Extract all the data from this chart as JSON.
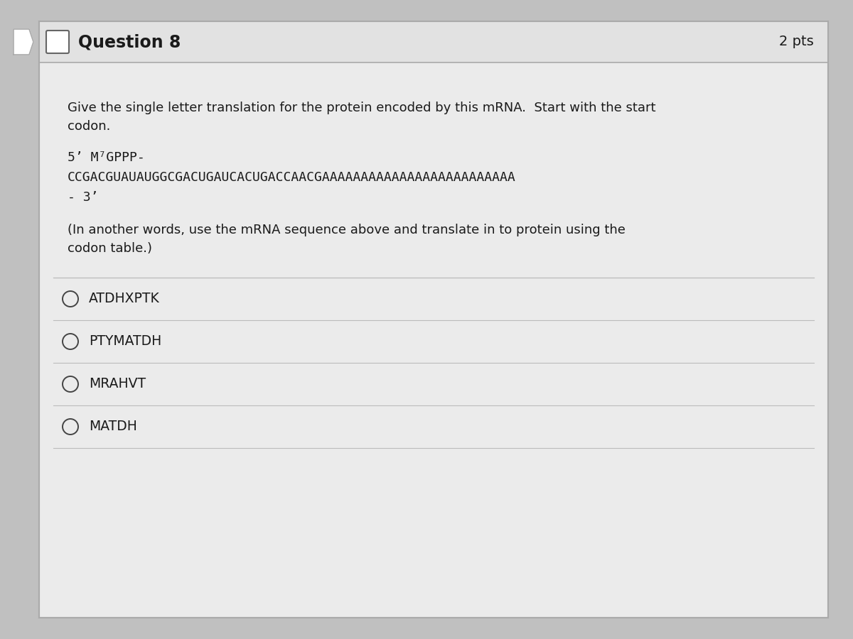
{
  "title": "Question 8",
  "pts": "2 pts",
  "question_text_line1": "Give the single letter translation for the protein encoded by this mRNA.  Start with the start",
  "question_text_line2": "codon.",
  "mrna_line1": "5’ M⁷GPPP-",
  "mrna_line2": "CCGACGUAUAUGGCGACUGAUCACUGACCAACGAAAAAAAAAAAAAAAAAAAAAAAAA",
  "mrna_line3": "- 3’",
  "note_line1": "(In another words, use the mRNA sequence above and translate in to protein using the",
  "note_line2": "codon table.)",
  "choices": [
    "ATDHXPTK",
    "PTYMATDH",
    "MRAHVT",
    "MATDH"
  ],
  "bg_outer": "#c0c0c0",
  "bg_header": "#e2e2e2",
  "bg_body": "#ebebeb",
  "text_color": "#1a1a1a",
  "header_border_color": "#aaaaaa",
  "choice_border_color": "#bbbbbb",
  "circle_color": "#444444",
  "title_fontsize": 17,
  "pts_fontsize": 14,
  "body_fontsize": 13,
  "mrna_fontsize": 13,
  "choice_fontsize": 13.5
}
